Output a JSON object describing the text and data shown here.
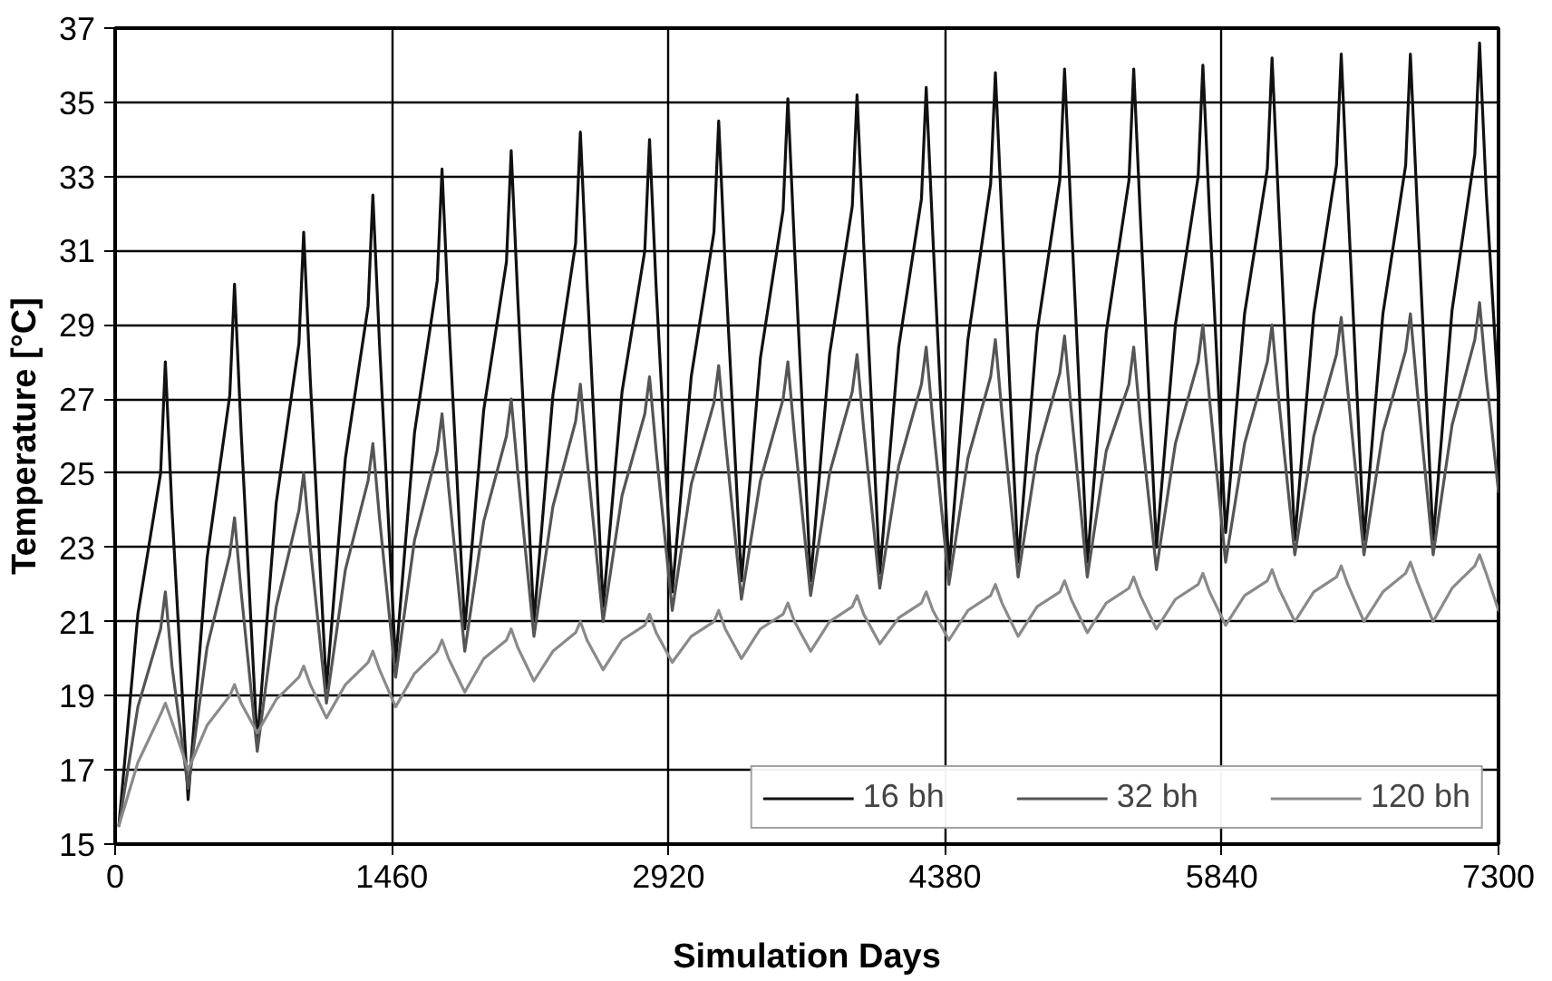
{
  "chart_data": {
    "type": "line",
    "xlabel": "Simulation Days",
    "ylabel": "Temperature [°C]",
    "x": [
      20,
      120,
      240,
      265,
      300,
      385,
      485,
      605,
      630,
      665,
      750,
      850,
      970,
      995,
      1030,
      1115,
      1215,
      1335,
      1360,
      1395,
      1480,
      1580,
      1700,
      1725,
      1760,
      1845,
      1945,
      2065,
      2090,
      2125,
      2210,
      2310,
      2430,
      2455,
      2490,
      2575,
      2675,
      2795,
      2820,
      2855,
      2940,
      3040,
      3160,
      3185,
      3220,
      3305,
      3405,
      3525,
      3550,
      3585,
      3670,
      3770,
      3890,
      3915,
      3950,
      4035,
      4135,
      4255,
      4280,
      4315,
      4400,
      4500,
      4620,
      4645,
      4680,
      4765,
      4865,
      4985,
      5010,
      5045,
      5130,
      5230,
      5350,
      5375,
      5410,
      5495,
      5595,
      5715,
      5740,
      5775,
      5860,
      5960,
      6080,
      6105,
      6140,
      6225,
      6325,
      6445,
      6470,
      6505,
      6590,
      6690,
      6810,
      6835,
      6870,
      6955,
      7055,
      7175,
      7200,
      7235,
      7300
    ],
    "series": [
      {
        "name": "16 bh",
        "color": "#111111",
        "values": [
          15.5,
          21.2,
          25.0,
          28.0,
          24.0,
          16.2,
          22.7,
          27.1,
          30.1,
          26.1,
          17.7,
          24.2,
          28.5,
          31.5,
          27.5,
          19.2,
          25.4,
          29.5,
          32.5,
          28.5,
          19.9,
          26.1,
          30.2,
          33.2,
          29.2,
          20.8,
          26.7,
          30.7,
          33.7,
          29.7,
          21.0,
          27.1,
          31.2,
          34.2,
          30.2,
          21.4,
          27.2,
          31.0,
          34.0,
          30.0,
          21.8,
          27.6,
          31.5,
          34.5,
          30.5,
          22.1,
          28.1,
          32.1,
          35.1,
          31.1,
          22.1,
          28.2,
          32.2,
          35.2,
          31.2,
          22.3,
          28.4,
          32.4,
          35.4,
          31.4,
          22.4,
          28.6,
          32.8,
          35.8,
          31.8,
          22.6,
          28.8,
          32.9,
          35.9,
          31.9,
          22.6,
          28.8,
          32.9,
          35.9,
          31.9,
          23.0,
          29.0,
          33.0,
          36.0,
          32.0,
          23.4,
          29.3,
          33.2,
          36.2,
          32.2,
          23.2,
          29.3,
          33.3,
          36.3,
          32.3,
          23.2,
          29.3,
          33.3,
          36.3,
          32.3,
          23.2,
          29.4,
          33.6,
          36.6,
          32.6,
          27.0
        ]
      },
      {
        "name": "32 bh",
        "color": "#555555",
        "values": [
          15.5,
          18.7,
          20.8,
          21.8,
          19.8,
          16.5,
          20.3,
          22.8,
          23.8,
          21.8,
          17.5,
          21.4,
          24.0,
          25.0,
          23.0,
          18.8,
          22.4,
          24.8,
          25.8,
          23.8,
          19.5,
          23.2,
          25.6,
          26.6,
          24.6,
          20.2,
          23.7,
          26.0,
          27.0,
          25.0,
          20.6,
          24.1,
          26.4,
          27.4,
          25.4,
          21.0,
          24.4,
          26.6,
          27.6,
          25.6,
          21.3,
          24.7,
          26.9,
          27.9,
          25.9,
          21.6,
          24.8,
          27.0,
          28.0,
          26.0,
          21.7,
          25.0,
          27.2,
          28.2,
          26.2,
          21.9,
          25.2,
          27.4,
          28.4,
          26.4,
          22.0,
          25.4,
          27.6,
          28.6,
          26.6,
          22.2,
          25.5,
          27.7,
          28.7,
          26.7,
          22.2,
          25.6,
          27.4,
          28.4,
          26.4,
          22.4,
          25.8,
          28.0,
          29.0,
          27.0,
          22.6,
          25.8,
          28.0,
          29.0,
          27.0,
          22.8,
          26.0,
          28.2,
          29.2,
          27.2,
          22.8,
          26.1,
          28.3,
          29.3,
          27.3,
          22.8,
          26.3,
          28.6,
          29.6,
          27.6,
          24.5
        ]
      },
      {
        "name": "120 bh",
        "color": "#8a8a8a",
        "values": [
          15.5,
          17.2,
          18.5,
          18.8,
          18.3,
          17.0,
          18.2,
          19.0,
          19.3,
          18.8,
          18.0,
          18.9,
          19.5,
          19.8,
          19.3,
          18.4,
          19.3,
          19.9,
          20.2,
          19.7,
          18.7,
          19.6,
          20.2,
          20.5,
          20.0,
          19.1,
          20.0,
          20.5,
          20.8,
          20.3,
          19.4,
          20.2,
          20.7,
          21.0,
          20.5,
          19.7,
          20.5,
          20.9,
          21.2,
          20.7,
          19.9,
          20.6,
          21.0,
          21.3,
          20.8,
          20.0,
          20.8,
          21.2,
          21.5,
          21.0,
          20.2,
          21.0,
          21.4,
          21.7,
          21.2,
          20.4,
          21.1,
          21.5,
          21.8,
          21.3,
          20.5,
          21.3,
          21.7,
          22.0,
          21.5,
          20.6,
          21.4,
          21.8,
          22.1,
          21.6,
          20.7,
          21.5,
          21.9,
          22.2,
          21.7,
          20.8,
          21.6,
          22.0,
          22.3,
          21.8,
          20.9,
          21.7,
          22.1,
          22.4,
          21.9,
          21.0,
          21.8,
          22.2,
          22.5,
          22.0,
          21.0,
          21.8,
          22.3,
          22.6,
          22.1,
          21.0,
          21.9,
          22.5,
          22.8,
          22.3,
          21.3
        ]
      }
    ],
    "xlim": [
      0,
      7300
    ],
    "xticks": [
      0,
      1460,
      2920,
      4380,
      5840,
      7300
    ],
    "ylim": [
      15,
      37
    ],
    "yticks": [
      15,
      17,
      19,
      21,
      23,
      25,
      27,
      29,
      31,
      33,
      35,
      37
    ],
    "grid": true,
    "legend": "bottom right",
    "marker": "none",
    "line_style": "solid"
  }
}
